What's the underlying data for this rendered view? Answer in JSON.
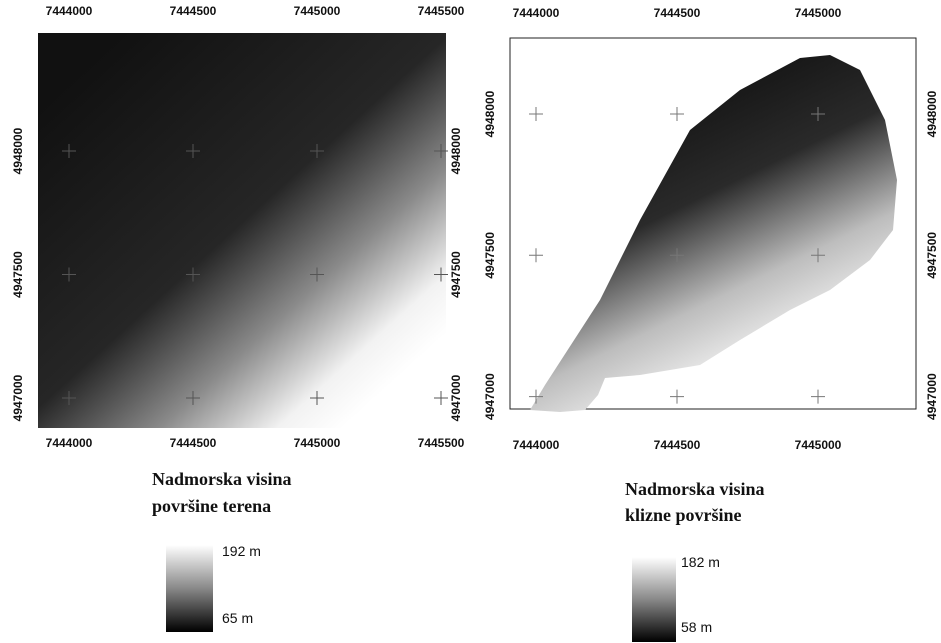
{
  "maps": [
    {
      "xticks": [
        7444000,
        7444500,
        7445000,
        7445500
      ],
      "yticks": [
        4948000,
        4947500,
        4947000
      ],
      "title": [
        "Nadmorska visina",
        "površine terena"
      ],
      "legend": {
        "max": "192 m",
        "min": "65 m"
      }
    },
    {
      "xticks": [
        7444000,
        7444500,
        7445000
      ],
      "yticks": [
        4948000,
        4947500,
        4947000
      ],
      "title": [
        "Nadmorska visina",
        "klizne površine"
      ],
      "legend": {
        "max": "182 m",
        "min": "58 m"
      }
    }
  ]
}
